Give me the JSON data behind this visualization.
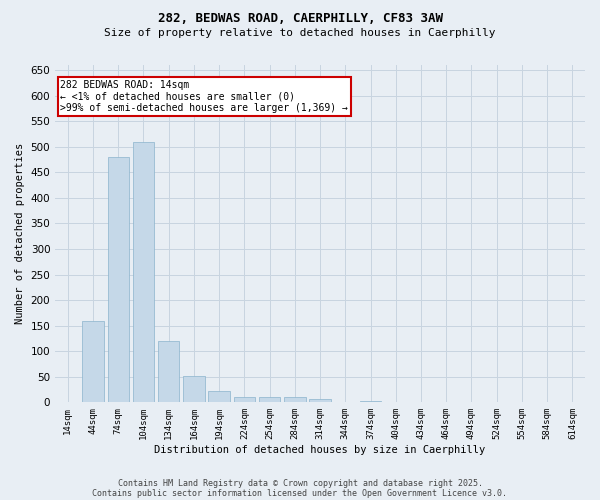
{
  "title_line1": "282, BEDWAS ROAD, CAERPHILLY, CF83 3AW",
  "title_line2": "Size of property relative to detached houses in Caerphilly",
  "xlabel": "Distribution of detached houses by size in Caerphilly",
  "ylabel": "Number of detached properties",
  "bar_color": "#c5d8e8",
  "bar_edge_color": "#8ab4cc",
  "background_color": "#e8eef4",
  "categories": [
    "14sqm",
    "44sqm",
    "74sqm",
    "104sqm",
    "134sqm",
    "164sqm",
    "194sqm",
    "224sqm",
    "254sqm",
    "284sqm",
    "314sqm",
    "344sqm",
    "374sqm",
    "404sqm",
    "434sqm",
    "464sqm",
    "494sqm",
    "524sqm",
    "554sqm",
    "584sqm",
    "614sqm"
  ],
  "values": [
    0,
    160,
    480,
    510,
    120,
    52,
    22,
    11,
    10,
    10,
    7,
    0,
    2,
    0,
    0,
    0,
    0,
    0,
    0,
    0,
    0
  ],
  "ylim": [
    0,
    660
  ],
  "yticks": [
    0,
    50,
    100,
    150,
    200,
    250,
    300,
    350,
    400,
    450,
    500,
    550,
    600,
    650
  ],
  "annotation_text": "282 BEDWAS ROAD: 14sqm\n← <1% of detached houses are smaller (0)\n>99% of semi-detached houses are larger (1,369) →",
  "annotation_box_color": "#ffffff",
  "annotation_edge_color": "#cc0000",
  "footer_line1": "Contains HM Land Registry data © Crown copyright and database right 2025.",
  "footer_line2": "Contains public sector information licensed under the Open Government Licence v3.0.",
  "grid_color": "#c8d4e0"
}
